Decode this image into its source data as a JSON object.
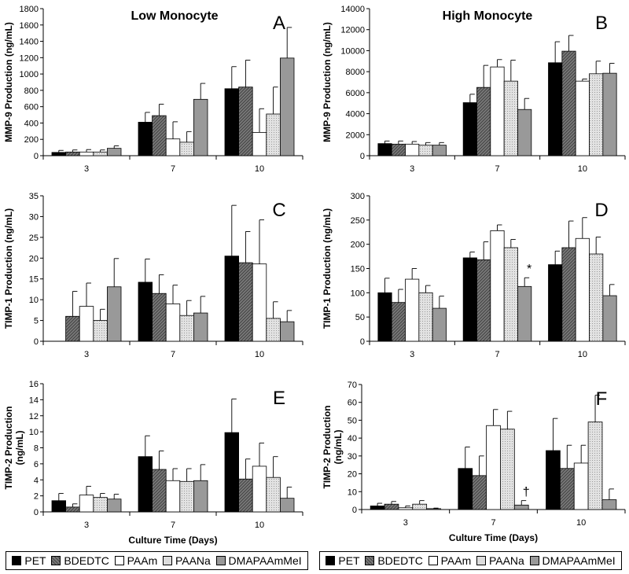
{
  "colors": {
    "PET": "#000000",
    "BDEDTC": "#777777",
    "PAAm": "#ffffff",
    "PAANa": "#d6d6d6",
    "DMAPAAmMeI": "#999999"
  },
  "legend": {
    "left": [
      "PET",
      "BDEDTC",
      "PAAm",
      "PAANa",
      "DMAPAAmMeI"
    ],
    "right": [
      "PET",
      "BDEDTC",
      "PAAm",
      "PAANa",
      "DMAPAAmMeI"
    ]
  },
  "chart_data": [
    {
      "id": "A",
      "type": "bar",
      "panel_label": "A",
      "title": "Low Monocyte",
      "ylabel": "MMP-9 Production (ng/mL)",
      "xlabel": "",
      "ylim": [
        0,
        1800
      ],
      "yticks": [
        0,
        200,
        400,
        600,
        800,
        1000,
        1200,
        1400,
        1600,
        1800
      ],
      "categories": [
        "3",
        "7",
        "10"
      ],
      "series": [
        {
          "name": "PET",
          "values": [
            40,
            410,
            820
          ],
          "errors": [
            25,
            120,
            270
          ]
        },
        {
          "name": "BDEDTC",
          "values": [
            45,
            490,
            840
          ],
          "errors": [
            25,
            140,
            330
          ]
        },
        {
          "name": "PAAm",
          "values": [
            45,
            205,
            285
          ],
          "errors": [
            30,
            210,
            290
          ]
        },
        {
          "name": "PAANa",
          "values": [
            45,
            165,
            510
          ],
          "errors": [
            25,
            130,
            330
          ]
        },
        {
          "name": "DMAPAAmMeI",
          "values": [
            90,
            690,
            1195
          ],
          "errors": [
            30,
            195,
            375
          ]
        }
      ],
      "annotations": []
    },
    {
      "id": "B",
      "type": "bar",
      "panel_label": "B",
      "title": "High Monocyte",
      "ylabel": "MMP-9 Production (ng/mL)",
      "xlabel": "",
      "ylim": [
        0,
        14000
      ],
      "yticks": [
        0,
        2000,
        4000,
        6000,
        8000,
        10000,
        12000,
        14000
      ],
      "categories": [
        "3",
        "7",
        "10"
      ],
      "series": [
        {
          "name": "PET",
          "values": [
            1150,
            5050,
            8850
          ],
          "errors": [
            250,
            800,
            2000
          ]
        },
        {
          "name": "BDEDTC",
          "values": [
            1100,
            6500,
            9950
          ],
          "errors": [
            300,
            2100,
            1500
          ]
        },
        {
          "name": "PAAm",
          "values": [
            1100,
            8450,
            7100
          ],
          "errors": [
            250,
            700,
            200
          ]
        },
        {
          "name": "PAANa",
          "values": [
            1000,
            7100,
            7800
          ],
          "errors": [
            250,
            2000,
            1200
          ]
        },
        {
          "name": "DMAPAAmMeI",
          "values": [
            1000,
            4400,
            7850
          ],
          "errors": [
            250,
            1050,
            950
          ]
        }
      ],
      "annotations": []
    },
    {
      "id": "C",
      "type": "bar",
      "panel_label": "C",
      "title": "",
      "ylabel": "TIMP-1 Production (ng/mL)",
      "xlabel": "",
      "ylim": [
        0,
        35
      ],
      "yticks": [
        0,
        5,
        10,
        15,
        20,
        25,
        30,
        35
      ],
      "categories": [
        "3",
        "7",
        "10"
      ],
      "series": [
        {
          "name": "PET",
          "values": [
            0,
            14.2,
            20.5
          ],
          "errors": [
            0,
            5.6,
            12.2
          ]
        },
        {
          "name": "BDEDTC",
          "values": [
            6,
            11.5,
            18.9
          ],
          "errors": [
            6,
            4.5,
            7.5
          ]
        },
        {
          "name": "PAAm",
          "values": [
            8.4,
            9.0,
            18.6
          ],
          "errors": [
            5.6,
            4.5,
            10.6
          ]
        },
        {
          "name": "PAANa",
          "values": [
            5,
            6.2,
            5.5
          ],
          "errors": [
            2.7,
            3.6,
            4.0
          ]
        },
        {
          "name": "DMAPAAmMeI",
          "values": [
            13.1,
            6.8,
            4.7
          ],
          "errors": [
            6.8,
            4.0,
            2.7
          ]
        }
      ],
      "annotations": []
    },
    {
      "id": "D",
      "type": "bar",
      "panel_label": "D",
      "title": "",
      "ylabel": "TIMP-1 Production (ng/mL)",
      "xlabel": "",
      "ylim": [
        0,
        300
      ],
      "yticks": [
        0,
        50,
        100,
        150,
        200,
        250,
        300
      ],
      "categories": [
        "3",
        "7",
        "10"
      ],
      "series": [
        {
          "name": "PET",
          "values": [
            100,
            172,
            158
          ],
          "errors": [
            30,
            12,
            28
          ]
        },
        {
          "name": "BDEDTC",
          "values": [
            80,
            168,
            193
          ],
          "errors": [
            27,
            37,
            55
          ]
        },
        {
          "name": "PAAm",
          "values": [
            128,
            228,
            212
          ],
          "errors": [
            22,
            12,
            43
          ]
        },
        {
          "name": "PAANa",
          "values": [
            100,
            193,
            180
          ],
          "errors": [
            15,
            17,
            35
          ]
        },
        {
          "name": "DMAPAAmMeI",
          "values": [
            68,
            113,
            94
          ],
          "errors": [
            25,
            18,
            23
          ]
        }
      ],
      "annotations": [
        {
          "text": "*",
          "series": "DMAPAAmMeI",
          "category": "7"
        }
      ]
    },
    {
      "id": "E",
      "type": "bar",
      "panel_label": "E",
      "title": "",
      "ylabel": "TIMP-2 Production (ng/mL)",
      "xlabel": "Culture Time (Days)",
      "ylim": [
        0,
        16
      ],
      "yticks": [
        0,
        2,
        4,
        6,
        8,
        10,
        12,
        14,
        16
      ],
      "categories": [
        "3",
        "7",
        "10"
      ],
      "series": [
        {
          "name": "PET",
          "values": [
            1.4,
            6.9,
            9.9
          ],
          "errors": [
            0.9,
            2.6,
            4.2
          ]
        },
        {
          "name": "BDEDTC",
          "values": [
            0.6,
            5.3,
            4.1
          ],
          "errors": [
            0.4,
            2.3,
            2.5
          ]
        },
        {
          "name": "PAAm",
          "values": [
            2.1,
            3.9,
            5.7
          ],
          "errors": [
            1.1,
            1.5,
            2.9
          ]
        },
        {
          "name": "PAANa",
          "values": [
            1.8,
            3.8,
            4.3
          ],
          "errors": [
            0.5,
            1.6,
            2.6
          ]
        },
        {
          "name": "DMAPAAmMeI",
          "values": [
            1.6,
            3.9,
            1.7
          ],
          "errors": [
            0.6,
            2.0,
            1.4
          ]
        }
      ],
      "annotations": []
    },
    {
      "id": "F",
      "type": "bar",
      "panel_label": "F",
      "title": "",
      "ylabel": "TIMP-2 Production (ng/mL)",
      "xlabel": "Culture Time (Days)",
      "ylim": [
        0,
        70
      ],
      "yticks": [
        0,
        10,
        20,
        30,
        40,
        50,
        60,
        70
      ],
      "categories": [
        "3",
        "7",
        "10"
      ],
      "series": [
        {
          "name": "PET",
          "values": [
            2,
            23,
            33
          ],
          "errors": [
            1.5,
            12,
            18
          ]
        },
        {
          "name": "BDEDTC",
          "values": [
            3,
            19,
            23
          ],
          "errors": [
            1.5,
            11,
            13
          ]
        },
        {
          "name": "PAAm",
          "values": [
            1,
            47,
            26
          ],
          "errors": [
            1,
            9,
            10
          ]
        },
        {
          "name": "PAANa",
          "values": [
            3,
            45,
            49
          ],
          "errors": [
            2,
            10,
            15
          ]
        },
        {
          "name": "DMAPAAmMeI",
          "values": [
            0.5,
            2.5,
            5.5
          ],
          "errors": [
            0.3,
            2.5,
            6
          ]
        }
      ],
      "annotations": [
        {
          "text": "†",
          "series": "DMAPAAmMeI",
          "category": "7"
        }
      ]
    }
  ]
}
